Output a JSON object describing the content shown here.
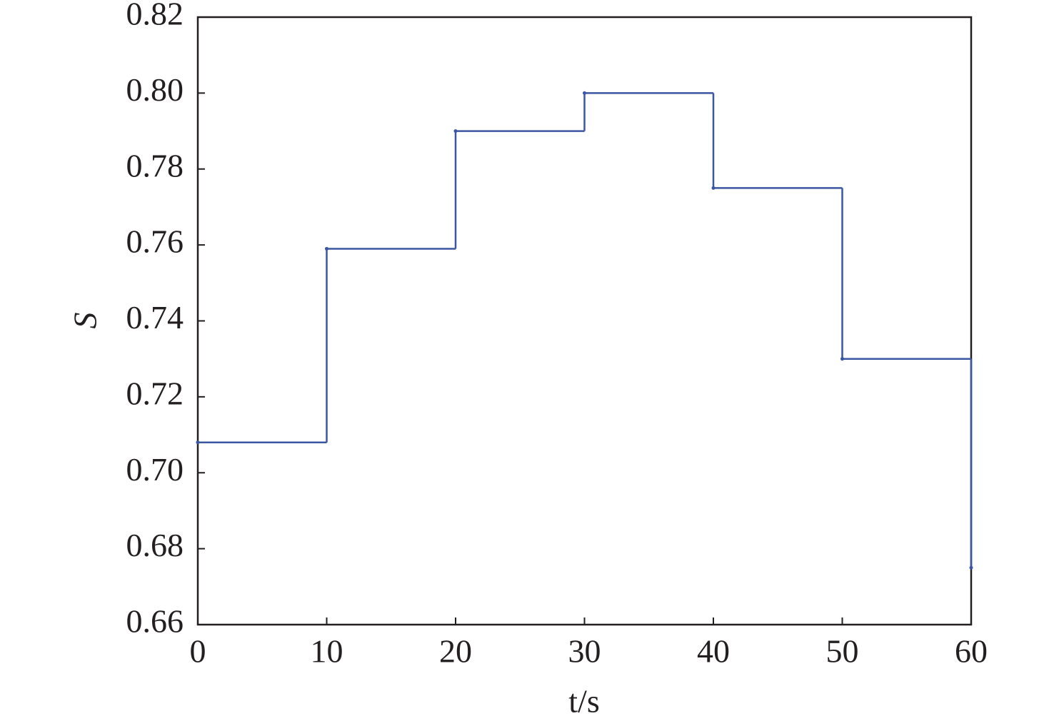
{
  "chart_data": {
    "type": "step",
    "xlabel": "t/s",
    "ylabel": "S",
    "x": [
      0,
      10,
      20,
      30,
      40,
      50,
      60
    ],
    "series": [
      {
        "color": "#3b56a3",
        "values": [
          0.708,
          0.759,
          0.79,
          0.8,
          0.775,
          0.73,
          0.675
        ]
      }
    ],
    "xlim": [
      0,
      60
    ],
    "xticks": [
      0,
      10,
      20,
      30,
      40,
      50,
      60
    ],
    "ylim": [
      0.66,
      0.82
    ],
    "yticks": [
      0.66,
      0.68,
      {
        "value": 0.7,
        "label": "0.70"
      },
      0.72,
      0.74,
      0.76,
      0.78,
      {
        "value": 0.8,
        "label": "0.80"
      },
      0.82
    ]
  }
}
